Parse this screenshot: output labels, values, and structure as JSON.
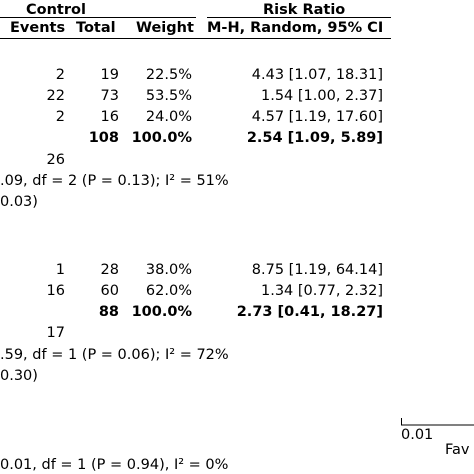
{
  "chart_data": {
    "type": "table",
    "header": {
      "group_control": "Control",
      "group_rr": "Risk Ratio",
      "col_events": "Events",
      "col_total": "Total",
      "col_weight": "Weight",
      "col_method": "M-H, Random, 95% CI"
    },
    "subgroups": [
      {
        "studies": [
          {
            "events": "2",
            "total": "19",
            "weight": "22.5%",
            "ci": "4.43 [1.07, 18.31]"
          },
          {
            "events": "22",
            "total": "73",
            "weight": "53.5%",
            "ci": "1.54 [1.00, 2.37]"
          },
          {
            "events": "2",
            "total": "16",
            "weight": "24.0%",
            "ci": "4.57 [1.19, 17.60]"
          }
        ],
        "subtotal": {
          "total": "108",
          "weight": "100.0%",
          "ci": "2.54 [1.09, 5.89]"
        },
        "total_events": "26",
        "heterogeneity": ".09, df = 2 (P = 0.13); I² = 51%",
        "overall_effect": "0.03)"
      },
      {
        "studies": [
          {
            "events": "1",
            "total": "28",
            "weight": "38.0%",
            "ci": "8.75 [1.19, 64.14]"
          },
          {
            "events": "16",
            "total": "60",
            "weight": "62.0%",
            "ci": "1.34 [0.77, 2.32]"
          }
        ],
        "subtotal": {
          "total": "88",
          "weight": "100.0%",
          "ci": "2.73 [0.41, 18.27]"
        },
        "total_events": "17",
        "heterogeneity": ".59, df = 1 (P = 0.06); I² = 72%",
        "overall_effect": "0.30)"
      }
    ],
    "subgroup_difference": "0.01, df = 1 (P = 0.94), I² = 0%",
    "axis": {
      "tick_label": "0.01",
      "favours_label": "Fav"
    }
  }
}
